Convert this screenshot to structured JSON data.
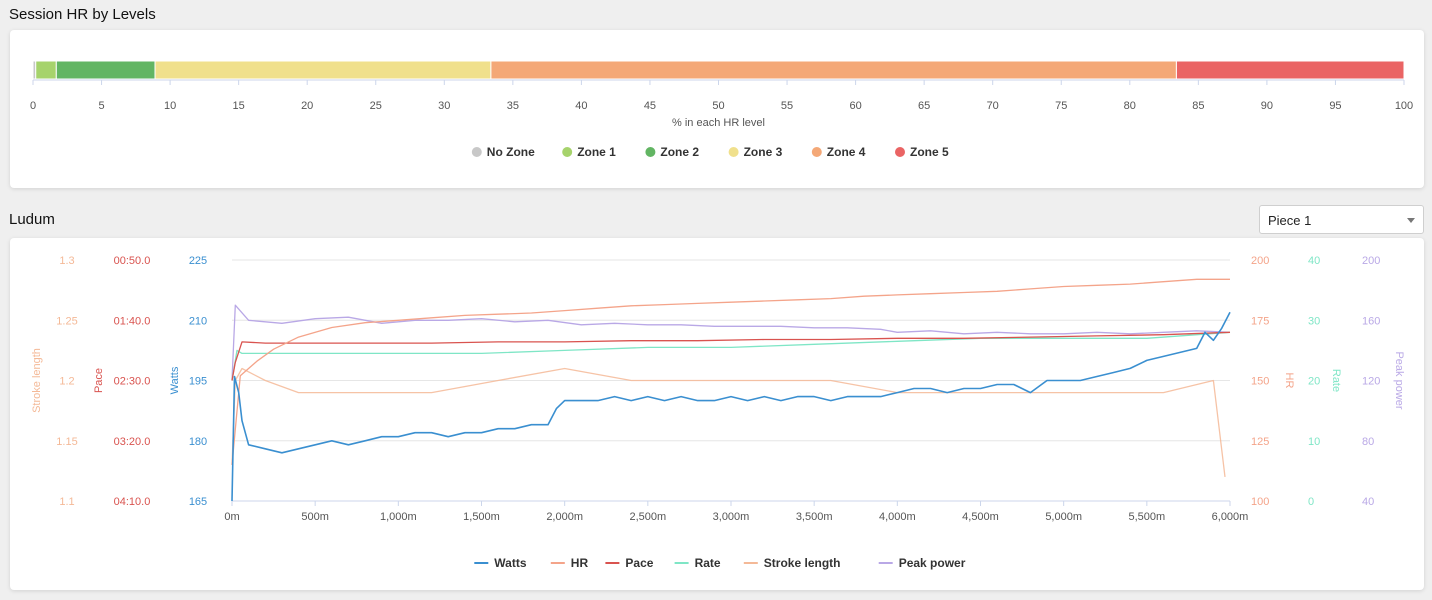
{
  "hr_section": {
    "title": "Session HR by Levels"
  },
  "ludum_section": {
    "title": "Ludum",
    "piece_select": {
      "value": "Piece 1"
    }
  },
  "chart_data": [
    {
      "type": "bar",
      "orientation": "horizontal-stacked",
      "xlabel": "% in each HR level",
      "xlim": [
        0,
        100
      ],
      "x_ticks": [
        "0",
        "5",
        "10",
        "15",
        "20",
        "25",
        "30",
        "35",
        "40",
        "45",
        "50",
        "55",
        "60",
        "65",
        "70",
        "75",
        "80",
        "85",
        "90",
        "95",
        "100"
      ],
      "legend_position": "bottom",
      "series": [
        {
          "name": "No Zone",
          "value": 0.2,
          "color": "#c8c8c8"
        },
        {
          "name": "Zone 1",
          "value": 1.5,
          "color": "#a6d36c"
        },
        {
          "name": "Zone 2",
          "value": 7.2,
          "color": "#62b563"
        },
        {
          "name": "Zone 3",
          "value": 24.5,
          "color": "#f0e08c"
        },
        {
          "name": "Zone 4",
          "value": 50.0,
          "color": "#f4a877"
        },
        {
          "name": "Zone 5",
          "value": 16.6,
          "color": "#ea6464"
        }
      ]
    },
    {
      "type": "line",
      "xlim": [
        0,
        6000
      ],
      "x_ticks": [
        "0m",
        "500m",
        "1,000m",
        "1,500m",
        "2,000m",
        "2,500m",
        "3,000m",
        "3,500m",
        "4,000m",
        "4,500m",
        "5,000m",
        "5,500m",
        "6,000m"
      ],
      "legend_position": "bottom",
      "grid": true,
      "axes": {
        "stroke_length": {
          "label": "Stroke length",
          "ticks": [
            "1.3",
            "1.25",
            "1.2",
            "1.15",
            "1.1"
          ],
          "range": [
            1.1,
            1.3
          ],
          "color": "#f4b997"
        },
        "pace": {
          "label": "Pace",
          "ticks": [
            "00:50.0",
            "01:40.0",
            "02:30.0",
            "03:20.0",
            "04:10.0"
          ],
          "range": [
            50,
            250
          ],
          "color": "#d9534f"
        },
        "watts": {
          "label": "Watts",
          "ticks": [
            "225",
            "210",
            "195",
            "180",
            "165"
          ],
          "range": [
            165,
            225
          ],
          "color": "#3a8fd0"
        },
        "hr": {
          "label": "HR",
          "ticks": [
            "200",
            "175",
            "150",
            "125",
            "100"
          ],
          "range": [
            100,
            200
          ],
          "color": "#f4a48a"
        },
        "rate": {
          "label": "Rate",
          "ticks": [
            "40",
            "30",
            "20",
            "10",
            "0"
          ],
          "range": [
            0,
            40
          ],
          "color": "#7fe6c6"
        },
        "peak_power": {
          "label": "Peak power",
          "ticks": [
            "200",
            "160",
            "120",
            "80",
            "40"
          ],
          "range": [
            40,
            200
          ],
          "color": "#b9a8e6"
        }
      },
      "series": [
        {
          "name": "Watts",
          "color": "#3a8fd0",
          "points": [
            [
              0,
              165
            ],
            [
              15,
              196
            ],
            [
              40,
              192
            ],
            [
              60,
              185
            ],
            [
              100,
              179
            ],
            [
              200,
              178
            ],
            [
              300,
              177
            ],
            [
              400,
              178
            ],
            [
              500,
              179
            ],
            [
              600,
              180
            ],
            [
              700,
              179
            ],
            [
              800,
              180
            ],
            [
              900,
              181
            ],
            [
              1000,
              181
            ],
            [
              1100,
              182
            ],
            [
              1200,
              182
            ],
            [
              1300,
              181
            ],
            [
              1400,
              182
            ],
            [
              1500,
              182
            ],
            [
              1600,
              183
            ],
            [
              1700,
              183
            ],
            [
              1800,
              184
            ],
            [
              1900,
              184
            ],
            [
              1950,
              188
            ],
            [
              2000,
              190
            ],
            [
              2100,
              190
            ],
            [
              2200,
              190
            ],
            [
              2300,
              191
            ],
            [
              2400,
              190
            ],
            [
              2500,
              191
            ],
            [
              2600,
              190
            ],
            [
              2700,
              191
            ],
            [
              2800,
              190
            ],
            [
              2900,
              190
            ],
            [
              3000,
              191
            ],
            [
              3100,
              190
            ],
            [
              3200,
              191
            ],
            [
              3300,
              190
            ],
            [
              3400,
              191
            ],
            [
              3500,
              191
            ],
            [
              3600,
              190
            ],
            [
              3700,
              191
            ],
            [
              3800,
              191
            ],
            [
              3900,
              191
            ],
            [
              4000,
              192
            ],
            [
              4100,
              193
            ],
            [
              4200,
              193
            ],
            [
              4300,
              192
            ],
            [
              4400,
              193
            ],
            [
              4500,
              193
            ],
            [
              4600,
              194
            ],
            [
              4700,
              194
            ],
            [
              4800,
              192
            ],
            [
              4900,
              195
            ],
            [
              5000,
              195
            ],
            [
              5100,
              195
            ],
            [
              5200,
              196
            ],
            [
              5300,
              197
            ],
            [
              5400,
              198
            ],
            [
              5500,
              200
            ],
            [
              5600,
              201
            ],
            [
              5700,
              202
            ],
            [
              5800,
              203
            ],
            [
              5850,
              207
            ],
            [
              5900,
              205
            ],
            [
              5950,
              208
            ],
            [
              6000,
              212
            ]
          ]
        },
        {
          "name": "HR",
          "color": "#f4a48a",
          "points": [
            [
              0,
              115
            ],
            [
              50,
              152
            ],
            [
              150,
              158
            ],
            [
              250,
              163
            ],
            [
              400,
              168
            ],
            [
              600,
              172
            ],
            [
              800,
              174
            ],
            [
              1000,
              175
            ],
            [
              1200,
              176
            ],
            [
              1400,
              177
            ],
            [
              1600,
              177.5
            ],
            [
              1800,
              178
            ],
            [
              2000,
              179
            ],
            [
              2200,
              180
            ],
            [
              2400,
              181
            ],
            [
              2600,
              181.5
            ],
            [
              2800,
              182
            ],
            [
              3000,
              182.5
            ],
            [
              3200,
              183
            ],
            [
              3400,
              183.5
            ],
            [
              3600,
              184
            ],
            [
              3800,
              185
            ],
            [
              4000,
              185.5
            ],
            [
              4200,
              186
            ],
            [
              4400,
              186.5
            ],
            [
              4600,
              187
            ],
            [
              4800,
              188
            ],
            [
              5000,
              189
            ],
            [
              5200,
              189.5
            ],
            [
              5400,
              190
            ],
            [
              5600,
              191
            ],
            [
              5800,
              192
            ],
            [
              6000,
              192
            ]
          ]
        },
        {
          "name": "Pace",
          "color": "#d9534f",
          "points": [
            [
              0,
              150
            ],
            [
              20,
              135
            ],
            [
              60,
              118
            ],
            [
              200,
              119
            ],
            [
              400,
              119
            ],
            [
              800,
              119
            ],
            [
              1200,
              119
            ],
            [
              1600,
              118
            ],
            [
              2000,
              118
            ],
            [
              2400,
              117
            ],
            [
              2800,
              117
            ],
            [
              3200,
              116
            ],
            [
              3600,
              116
            ],
            [
              4000,
              115
            ],
            [
              4400,
              115
            ],
            [
              4800,
              114
            ],
            [
              5200,
              113
            ],
            [
              5600,
              112
            ],
            [
              6000,
              110
            ]
          ]
        },
        {
          "name": "Rate",
          "color": "#7fe6c6",
          "points": [
            [
              0,
              20
            ],
            [
              30,
              25
            ],
            [
              60,
              24.5
            ],
            [
              200,
              24.5
            ],
            [
              500,
              24.5
            ],
            [
              1000,
              24.5
            ],
            [
              1500,
              24.5
            ],
            [
              2000,
              25
            ],
            [
              2500,
              25.5
            ],
            [
              3000,
              25.5
            ],
            [
              3500,
              26
            ],
            [
              4000,
              26.5
            ],
            [
              4500,
              27
            ],
            [
              5000,
              27
            ],
            [
              5500,
              27
            ],
            [
              6000,
              28
            ]
          ]
        },
        {
          "name": "Stroke length",
          "color": "#f4b997",
          "points": [
            [
              0,
              1.13
            ],
            [
              20,
              1.2
            ],
            [
              60,
              1.21
            ],
            [
              200,
              1.2
            ],
            [
              400,
              1.19
            ],
            [
              800,
              1.19
            ],
            [
              1200,
              1.19
            ],
            [
              1600,
              1.2
            ],
            [
              2000,
              1.21
            ],
            [
              2400,
              1.2
            ],
            [
              2800,
              1.2
            ],
            [
              3200,
              1.2
            ],
            [
              3600,
              1.2
            ],
            [
              4000,
              1.19
            ],
            [
              4400,
              1.19
            ],
            [
              4800,
              1.19
            ],
            [
              5200,
              1.19
            ],
            [
              5600,
              1.19
            ],
            [
              5900,
              1.2
            ],
            [
              5970,
              1.12
            ]
          ]
        },
        {
          "name": "Peak power",
          "color": "#b9a8e6",
          "points": [
            [
              0,
              120
            ],
            [
              20,
              170
            ],
            [
              100,
              160
            ],
            [
              300,
              158
            ],
            [
              500,
              161
            ],
            [
              700,
              162
            ],
            [
              900,
              158
            ],
            [
              1100,
              160
            ],
            [
              1300,
              160
            ],
            [
              1500,
              161
            ],
            [
              1700,
              159
            ],
            [
              1900,
              160
            ],
            [
              2100,
              157
            ],
            [
              2300,
              158
            ],
            [
              2500,
              157
            ],
            [
              2700,
              157
            ],
            [
              2900,
              156
            ],
            [
              3100,
              156
            ],
            [
              3300,
              156
            ],
            [
              3500,
              155
            ],
            [
              3700,
              155
            ],
            [
              3900,
              154
            ],
            [
              4000,
              152
            ],
            [
              4200,
              153
            ],
            [
              4400,
              151
            ],
            [
              4600,
              152
            ],
            [
              4800,
              151
            ],
            [
              5000,
              151
            ],
            [
              5200,
              152
            ],
            [
              5400,
              151
            ],
            [
              5600,
              152
            ],
            [
              5800,
              153
            ],
            [
              6000,
              152
            ]
          ]
        }
      ]
    }
  ]
}
